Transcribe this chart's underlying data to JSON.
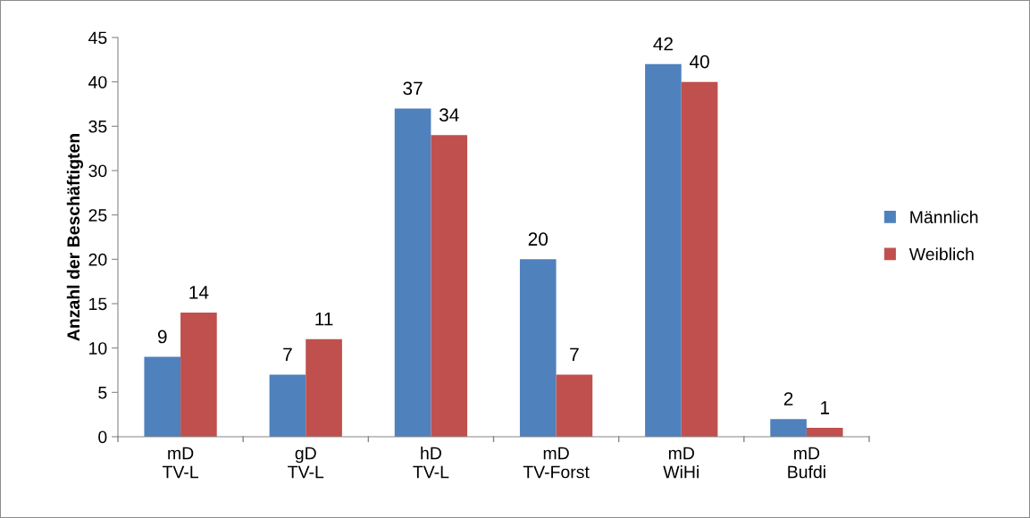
{
  "chart_data": {
    "type": "bar",
    "ylabel": "Anzahl der Beschäftigten",
    "categories": [
      "mD\nTV-L",
      "gD\nTV-L",
      "hD\nTV-L",
      "mD\nTV-Forst",
      "mD\nWiHi",
      "mD\nBufdi"
    ],
    "series": [
      {
        "name": "Männlich",
        "color": "#4f81bd",
        "values": [
          9,
          7,
          37,
          20,
          42,
          2
        ]
      },
      {
        "name": "Weiblich",
        "color": "#c0504d",
        "values": [
          14,
          11,
          34,
          7,
          40,
          1
        ]
      }
    ],
    "ylim": [
      0,
      45
    ],
    "yticks": [
      0,
      5,
      10,
      15,
      20,
      25,
      30,
      35,
      40,
      45
    ],
    "data_labels": true,
    "grid": false,
    "legend": "right"
  }
}
